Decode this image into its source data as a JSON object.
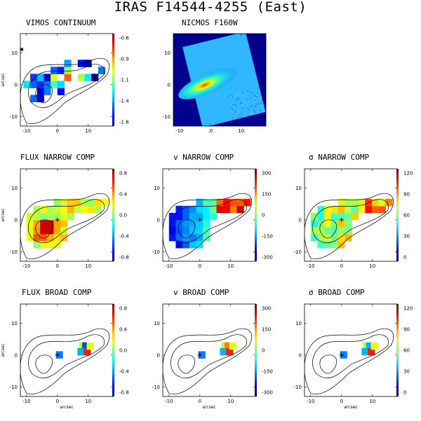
{
  "title": "IRAS F14544-4255 (East)",
  "axis_unit": "arcsec",
  "panels": [
    {
      "title": "VIMOS CONTINUUM",
      "xticks": [
        "-10",
        "0",
        "10"
      ],
      "yticks": [
        "10",
        "0",
        "-10"
      ],
      "show_xlabel": false,
      "show_ylabel": true,
      "cbar_ticks": [
        "-0.6",
        "-0.9",
        "-1.1",
        "-1.4",
        "-1.6"
      ],
      "kind": "continuum"
    },
    {
      "title": "NICMOS F160W",
      "xticks": [
        "-10",
        ".0",
        "10"
      ],
      "yticks": [
        "10",
        "0",
        "-10"
      ],
      "show_xlabel": false,
      "show_ylabel": false,
      "cbar_ticks": [],
      "kind": "nicmos"
    },
    {
      "title": "FLUX NARROW COMP",
      "xticks": [
        "-10",
        "0",
        "10"
      ],
      "yticks": [
        "10",
        "0",
        "-10"
      ],
      "show_xlabel": false,
      "show_ylabel": true,
      "cbar_ticks": [
        "0.8",
        "0.4",
        "0.0",
        "-0.4",
        "-0.8"
      ],
      "kind": "flux"
    },
    {
      "title": "v NARROW COMP",
      "xticks": [
        "-10",
        "0",
        "10"
      ],
      "yticks": [
        "10",
        "0",
        "-10"
      ],
      "show_xlabel": false,
      "show_ylabel": false,
      "cbar_ticks": [
        "300",
        "150",
        "0",
        "-150",
        "-300"
      ],
      "kind": "vel"
    },
    {
      "title": "σ NARROW COMP",
      "xticks": [
        "-10",
        "0",
        "10"
      ],
      "yticks": [
        "10",
        "0",
        "-10"
      ],
      "show_xlabel": false,
      "show_ylabel": false,
      "cbar_ticks": [
        "120",
        "90",
        "60",
        "30",
        "0"
      ],
      "kind": "sig"
    },
    {
      "title": "FLUX BROAD COMP",
      "xticks": [
        "-10",
        "0",
        "10"
      ],
      "yticks": [
        "10",
        "0",
        "-10"
      ],
      "show_xlabel": true,
      "show_ylabel": true,
      "cbar_ticks": [
        "0.8",
        "0.4",
        "0.0",
        "-0.4",
        "-0.8"
      ],
      "kind": "broad"
    },
    {
      "title": "v BROAD COMP",
      "xticks": [
        "-10",
        "0",
        "10"
      ],
      "yticks": [
        "10",
        "0",
        "-10"
      ],
      "show_xlabel": true,
      "show_ylabel": false,
      "cbar_ticks": [
        "300",
        "150",
        "0",
        "-150",
        "-300"
      ],
      "kind": "broad"
    },
    {
      "title": "σ BROAD COMP",
      "xticks": [
        "-10",
        "0",
        "10"
      ],
      "yticks": [
        "10",
        "0",
        "-10"
      ],
      "show_xlabel": true,
      "show_ylabel": false,
      "cbar_ticks": [
        "120",
        "90",
        "60",
        "30",
        "0"
      ],
      "kind": "broad"
    }
  ]
}
